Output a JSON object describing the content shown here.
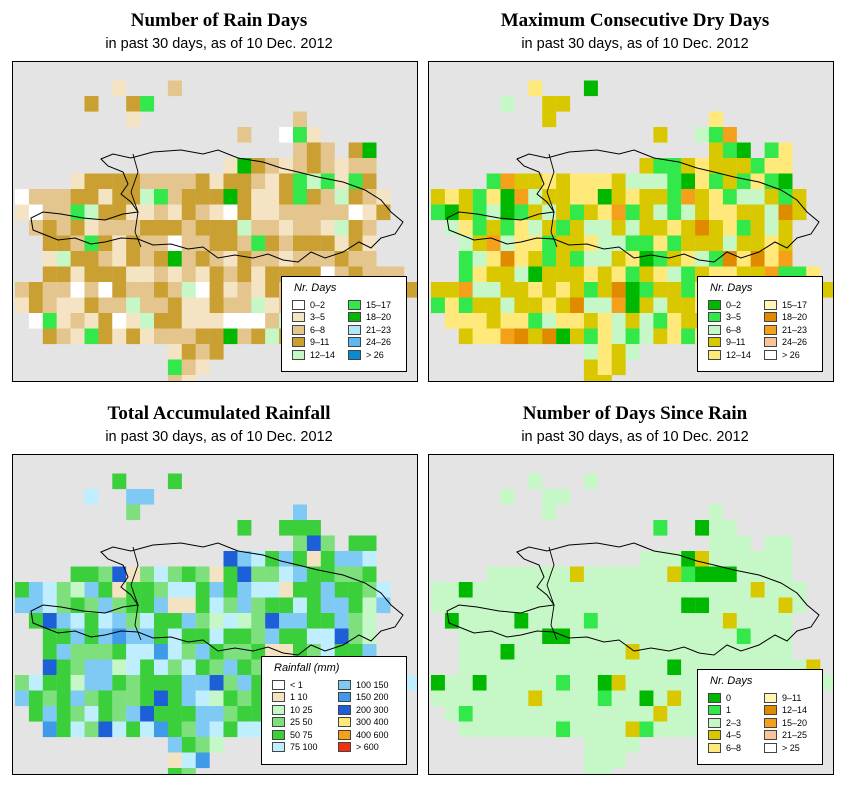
{
  "panels": [
    {
      "id": "rain-days",
      "title": "Number of Rain Days",
      "subtitle": "in past 30 days, as of  10 Dec. 2012",
      "legend_title": "Nr. Days",
      "legend": [
        {
          "label": "0–2",
          "color": "#ffffff"
        },
        {
          "label": "3–5",
          "color": "#f5e4c4"
        },
        {
          "label": "6–8",
          "color": "#e3c58d"
        },
        {
          "label": "9–11",
          "color": "#c9a031"
        },
        {
          "label": "12–14",
          "color": "#c6f7c6"
        },
        {
          "label": "15–17",
          "color": "#32e84a"
        },
        {
          "label": "18–20",
          "color": "#00b800"
        },
        {
          "label": "21–23",
          "color": "#b2e6f7"
        },
        {
          "label": "24–26",
          "color": "#5bb8f0"
        },
        {
          "label": "> 26",
          "color": "#0a8ad0"
        }
      ]
    },
    {
      "id": "dry-days",
      "title": "Maximum Consecutive Dry Days",
      "subtitle": "in past 30 days, as of  10 Dec. 2012",
      "legend_title": "Nr. Days",
      "legend": [
        {
          "label": "0–2",
          "color": "#00b800"
        },
        {
          "label": "3–5",
          "color": "#32e84a"
        },
        {
          "label": "6–8",
          "color": "#c6f7c6"
        },
        {
          "label": "9–11",
          "color": "#d9c800"
        },
        {
          "label": "12–14",
          "color": "#ffe97a"
        },
        {
          "label": "15–17",
          "color": "#fff6b5"
        },
        {
          "label": "18–20",
          "color": "#e08a00"
        },
        {
          "label": "21–23",
          "color": "#f5a01a"
        },
        {
          "label": "24–26",
          "color": "#f8c49a"
        },
        {
          "label": "> 26",
          "color": "#ffffff"
        }
      ]
    },
    {
      "id": "rainfall",
      "title": "Total Accumulated Rainfall",
      "subtitle": "in past 30 days, as of  10 Dec. 2012",
      "legend_title": "Rainfall (mm)",
      "legend": [
        {
          "label": "< 1",
          "color": "#ffffff"
        },
        {
          "label": "1   10",
          "color": "#f3e3c3"
        },
        {
          "label": "10   25",
          "color": "#c6f7c6"
        },
        {
          "label": "25   50",
          "color": "#7de07d"
        },
        {
          "label": "50   75",
          "color": "#3ccf3c"
        },
        {
          "label": "75  100",
          "color": "#bfeeff"
        },
        {
          "label": "100  150",
          "color": "#7fc9f5"
        },
        {
          "label": "150  200",
          "color": "#3f9ae8"
        },
        {
          "label": "200  300",
          "color": "#1c5fd6"
        },
        {
          "label": "300  400",
          "color": "#ffe97a"
        },
        {
          "label": "400  600",
          "color": "#f5a01a"
        },
        {
          "label": "> 600",
          "color": "#f03010"
        }
      ]
    },
    {
      "id": "since-rain",
      "title": "Number of Days Since Rain",
      "subtitle": "in past 30 days, as of  10 Dec. 2012",
      "legend_title": "Nr. Days",
      "legend": [
        {
          "label": "0",
          "color": "#00b800"
        },
        {
          "label": "1",
          "color": "#32e84a"
        },
        {
          "label": "2–3",
          "color": "#c6f7c6"
        },
        {
          "label": "4–5",
          "color": "#d9c800"
        },
        {
          "label": "6–8",
          "color": "#ffe97a"
        },
        {
          "label": "9–11",
          "color": "#fff6b5"
        },
        {
          "label": "12–14",
          "color": "#e08a00"
        },
        {
          "label": "15–20",
          "color": "#f5a01a"
        },
        {
          "label": "21–25",
          "color": "#f8c49a"
        },
        {
          "label": "> 25",
          "color": "#ffffff"
        }
      ]
    }
  ]
}
